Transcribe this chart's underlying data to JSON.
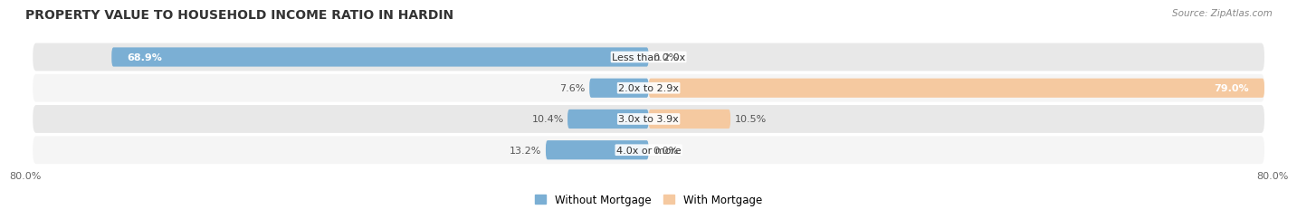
{
  "title": "PROPERTY VALUE TO HOUSEHOLD INCOME RATIO IN HARDIN",
  "source": "Source: ZipAtlas.com",
  "categories": [
    "Less than 2.0x",
    "2.0x to 2.9x",
    "3.0x to 3.9x",
    "4.0x or more"
  ],
  "without_mortgage": [
    68.9,
    7.6,
    10.4,
    13.2
  ],
  "with_mortgage": [
    0.0,
    79.0,
    10.5,
    0.0
  ],
  "without_mortgage_labels": [
    "68.9%",
    "7.6%",
    "10.4%",
    "13.2%"
  ],
  "with_mortgage_labels": [
    "0.0%",
    "79.0%",
    "10.5%",
    "0.0%"
  ],
  "color_without": "#7bafd4",
  "color_with": "#f5a865",
  "color_with_light": "#f5c9a0",
  "xlim": [
    -80,
    80
  ],
  "xtick_left_label": "80.0%",
  "xtick_right_label": "80.0%",
  "legend_without": "Without Mortgage",
  "legend_with": "With Mortgage",
  "row_bg_dark": "#e8e8e8",
  "row_bg_light": "#f5f5f5",
  "title_fontsize": 10,
  "source_fontsize": 7.5,
  "label_fontsize": 8,
  "cat_fontsize": 8
}
